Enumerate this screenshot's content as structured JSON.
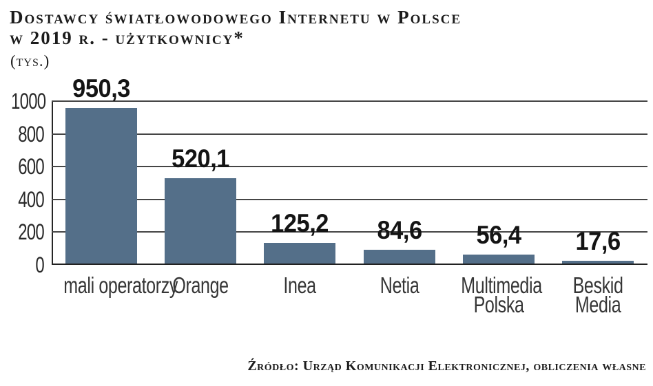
{
  "header": {
    "title_lines": [
      "Dostawcy światłowodowego Internetu w Polsce",
      "w 2019 r. - użytkownicy*"
    ],
    "units": "(tys.)"
  },
  "chart_data": {
    "type": "bar",
    "title": "Dostawcy światłowodowego Internetu w Polsce w 2019 r. - użytkownicy*",
    "units_label": "(tys.)",
    "categories": [
      "mali operatorzy",
      "Orange",
      "Inea",
      "Netia",
      "Multimedia Polska",
      "Beskid Media"
    ],
    "category_lines": [
      [
        "mali operatorzy"
      ],
      [
        "Orange"
      ],
      [
        "Inea"
      ],
      [
        "Netia"
      ],
      [
        "Multimedia",
        "Polska"
      ],
      [
        "Beskid",
        "Media"
      ]
    ],
    "values": [
      950.3,
      520.1,
      125.2,
      84.6,
      56.4,
      17.6
    ],
    "value_labels": [
      "950,3",
      "520,1",
      "125,2",
      "84,6",
      "56,4",
      "17,6"
    ],
    "xlabel": "",
    "ylabel": "tys.",
    "ylim": [
      0,
      1000
    ],
    "yticks": [
      0,
      200,
      400,
      600,
      800,
      1000
    ],
    "grid": true,
    "legend": false,
    "bar_color": "#546f89"
  },
  "footer": {
    "source": "Źródło: Urząd Komunikacji Elektronicznej, obliczenia własne"
  }
}
